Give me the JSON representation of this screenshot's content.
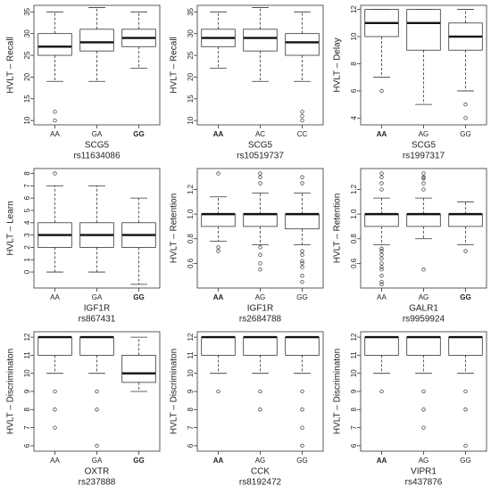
{
  "chart_data": [
    {
      "type": "box",
      "ylabel": "HVLT – Recall",
      "xlabel_lines": [
        "SCG5",
        "rs11634086"
      ],
      "categories": [
        "AA",
        "GA",
        "GG"
      ],
      "bold_categories": [
        "GG"
      ],
      "ylim": [
        9,
        36.5
      ],
      "yticks": [
        10,
        15,
        20,
        25,
        30,
        35
      ],
      "boxes": [
        {
          "low": 19,
          "q1": 25,
          "median": 27,
          "q3": 30,
          "high": 35,
          "outliers": [
            12,
            10
          ]
        },
        {
          "low": 19,
          "q1": 26,
          "median": 28,
          "q3": 31,
          "high": 36,
          "outliers": []
        },
        {
          "low": 22,
          "q1": 27,
          "median": 29,
          "q3": 31,
          "high": 35,
          "outliers": []
        }
      ]
    },
    {
      "type": "box",
      "ylabel": "HVLT – Recall",
      "xlabel_lines": [
        "SCG5",
        "rs10519737"
      ],
      "categories": [
        "AA",
        "AC",
        "CC"
      ],
      "bold_categories": [
        "AA"
      ],
      "ylim": [
        9,
        36.5
      ],
      "yticks": [
        10,
        15,
        20,
        25,
        30,
        35
      ],
      "boxes": [
        {
          "low": 22,
          "q1": 27,
          "median": 29,
          "q3": 31,
          "high": 35,
          "outliers": []
        },
        {
          "low": 19,
          "q1": 26,
          "median": 29,
          "q3": 31,
          "high": 36,
          "outliers": []
        },
        {
          "low": 19,
          "q1": 25,
          "median": 28,
          "q3": 30,
          "high": 35,
          "outliers": [
            12,
            11,
            10
          ]
        }
      ]
    },
    {
      "type": "box",
      "ylabel": "HVLT – Delay",
      "xlabel_lines": [
        "SCG5",
        "rs1997317"
      ],
      "categories": [
        "AA",
        "AG",
        "GG"
      ],
      "bold_categories": [
        "AA"
      ],
      "ylim": [
        3.5,
        12.3
      ],
      "yticks": [
        4,
        6,
        8,
        10,
        12
      ],
      "boxes": [
        {
          "low": 7,
          "q1": 10,
          "median": 11,
          "q3": 12,
          "high": 12,
          "outliers": [
            6
          ]
        },
        {
          "low": 5,
          "q1": 9,
          "median": 11,
          "q3": 12,
          "high": 12,
          "outliers": []
        },
        {
          "low": 6,
          "q1": 9,
          "median": 10,
          "q3": 11,
          "high": 12,
          "outliers": [
            5,
            4
          ]
        }
      ]
    },
    {
      "type": "box",
      "ylabel": "HVLT – Learn",
      "xlabel_lines": [
        "IGF1R",
        "rs867431"
      ],
      "categories": [
        "AA",
        "GA",
        "GG"
      ],
      "bold_categories": [
        "GG"
      ],
      "ylim": [
        -1.3,
        8.4
      ],
      "yticks": [
        0,
        1,
        2,
        3,
        4,
        5,
        6,
        7,
        8
      ],
      "boxes": [
        {
          "low": 0,
          "q1": 2,
          "median": 3,
          "q3": 4,
          "high": 7,
          "outliers": [
            8
          ]
        },
        {
          "low": 0,
          "q1": 2,
          "median": 3,
          "q3": 4,
          "high": 7,
          "outliers": []
        },
        {
          "low": -1,
          "q1": 2,
          "median": 3,
          "q3": 4,
          "high": 6,
          "outliers": []
        }
      ]
    },
    {
      "type": "box",
      "ylabel": "HVLT – Retention",
      "xlabel_lines": [
        "IGF1R",
        "rs2684788"
      ],
      "categories": [
        "AA",
        "AG",
        "GG"
      ],
      "bold_categories": [
        "AA"
      ],
      "ylim": [
        0.4,
        1.37
      ],
      "yticks": [
        0.6,
        0.8,
        {
          "value": 1,
          "label": "1.0"
        },
        1.2
      ],
      "boxes": [
        {
          "low": 0.78,
          "q1": 0.9,
          "median": 1,
          "q3": 1,
          "high": 1.14,
          "outliers": [
            1.33,
            0.73,
            0.7
          ]
        },
        {
          "low": 0.75,
          "q1": 0.9,
          "median": 1,
          "q3": 1,
          "high": 1.17,
          "outliers": [
            1.33,
            1.3,
            1.25,
            0.73,
            0.67,
            0.6,
            0.55
          ]
        },
        {
          "low": 0.75,
          "q1": 0.88,
          "median": 1,
          "q3": 1,
          "high": 1.17,
          "outliers": [
            1.3,
            1.25,
            0.7,
            0.67,
            0.62,
            0.6,
            0.57,
            0.5,
            0.45
          ]
        }
      ]
    },
    {
      "type": "box",
      "ylabel": "HVLT – Retention",
      "xlabel_lines": [
        "GALR1",
        "rs9959924"
      ],
      "categories": [
        "AA",
        "AG",
        "GG"
      ],
      "bold_categories": [
        "GG"
      ],
      "ylim": [
        0.4,
        1.37
      ],
      "yticks": [
        0.6,
        0.8,
        {
          "value": 1,
          "label": "1.0"
        },
        1.2
      ],
      "boxes": [
        {
          "low": 0.75,
          "q1": 0.9,
          "median": 1,
          "q3": 1,
          "high": 1.13,
          "outliers": [
            1.33,
            1.3,
            1.25,
            1.2,
            0.72,
            0.7,
            0.67,
            0.64,
            0.6,
            0.57,
            0.55,
            0.5,
            0.45,
            0.43
          ]
        },
        {
          "low": 0.8,
          "q1": 0.9,
          "median": 1,
          "q3": 1,
          "high": 1.13,
          "outliers": [
            1.33,
            1.3,
            1.29,
            1.25,
            1.2,
            0.55
          ]
        },
        {
          "low": 0.75,
          "q1": 0.9,
          "median": 1,
          "q3": 1,
          "high": 1.1,
          "outliers": [
            0.7
          ]
        }
      ]
    },
    {
      "type": "box",
      "ylabel": "HVLT – Discriminaton",
      "xlabel_lines": [
        "OXTR",
        "rs237888"
      ],
      "categories": [
        "AA",
        "GA",
        "GG"
      ],
      "bold_categories": [
        "GG"
      ],
      "ylim": [
        5.7,
        12.3
      ],
      "yticks": [
        6,
        7,
        8,
        9,
        10,
        11,
        12
      ],
      "boxes": [
        {
          "low": 10,
          "q1": 11,
          "median": 12,
          "q3": 12,
          "high": 12,
          "outliers": [
            9,
            8,
            7
          ]
        },
        {
          "low": 10,
          "q1": 11,
          "median": 12,
          "q3": 12,
          "high": 12,
          "outliers": [
            9,
            8,
            6
          ]
        },
        {
          "low": 9,
          "q1": 9.5,
          "median": 10,
          "q3": 11,
          "high": 12,
          "outliers": []
        }
      ]
    },
    {
      "type": "box",
      "ylabel": "HVLT – Discriminaton",
      "xlabel_lines": [
        "CCK",
        "rs8192472"
      ],
      "categories": [
        "AA",
        "AG",
        "GG"
      ],
      "bold_categories": [
        "AA"
      ],
      "ylim": [
        5.7,
        12.3
      ],
      "yticks": [
        6,
        7,
        8,
        9,
        10,
        11,
        12
      ],
      "boxes": [
        {
          "low": 10,
          "q1": 11,
          "median": 12,
          "q3": 12,
          "high": 12,
          "outliers": [
            9
          ]
        },
        {
          "low": 10,
          "q1": 11,
          "median": 12,
          "q3": 12,
          "high": 12,
          "outliers": [
            9,
            8
          ]
        },
        {
          "low": 10,
          "q1": 11,
          "median": 12,
          "q3": 12,
          "high": 12,
          "outliers": [
            9,
            8,
            7,
            6
          ]
        }
      ]
    },
    {
      "type": "box",
      "ylabel": "HVLT – Discriminaton",
      "xlabel_lines": [
        "VIPR1",
        "rs437876"
      ],
      "categories": [
        "AA",
        "AG",
        "GG"
      ],
      "bold_categories": [
        "AA"
      ],
      "ylim": [
        5.7,
        12.3
      ],
      "yticks": [
        6,
        7,
        8,
        9,
        10,
        11,
        12
      ],
      "boxes": [
        {
          "low": 10,
          "q1": 11,
          "median": 12,
          "q3": 12,
          "high": 12,
          "outliers": [
            9
          ]
        },
        {
          "low": 10,
          "q1": 11,
          "median": 12,
          "q3": 12,
          "high": 12,
          "outliers": [
            9,
            8,
            7
          ]
        },
        {
          "low": 10,
          "q1": 11,
          "median": 12,
          "q3": 12,
          "high": 12,
          "outliers": [
            9,
            8,
            6
          ]
        }
      ]
    }
  ]
}
